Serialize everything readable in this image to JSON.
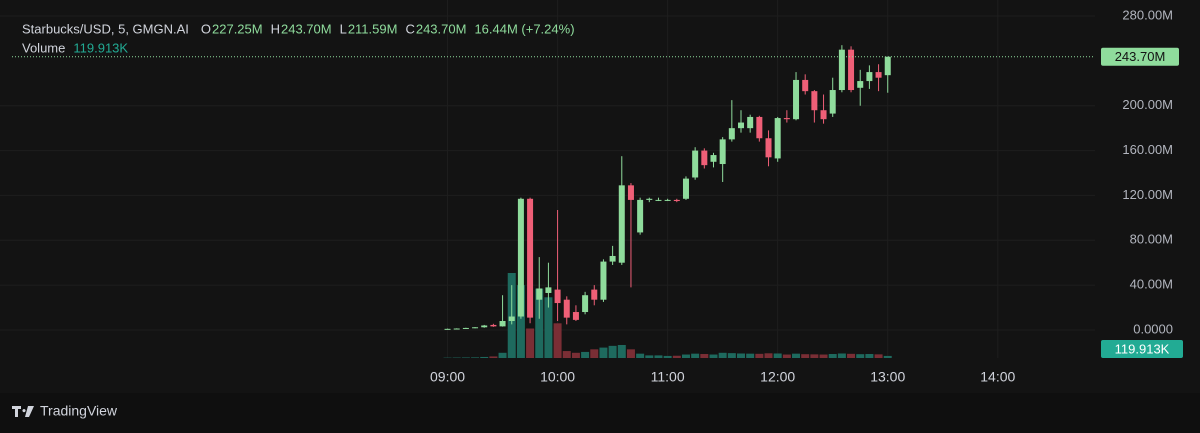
{
  "chart_data": {
    "type": "candlestick",
    "title": "Starbucks/USD, 5, GMGN.AI",
    "ohlc_header": [
      {
        "label": "O",
        "value": "227.25M"
      },
      {
        "label": "H",
        "value": "243.70M"
      },
      {
        "label": "L",
        "value": "211.59M"
      },
      {
        "label": "C",
        "value": "243.70M"
      }
    ],
    "change": "16.44M (+7.24%)",
    "volume_label": "Volume",
    "last_price": {
      "value": 243.7,
      "label": "243.70M"
    },
    "last_volume": {
      "value": 119913,
      "label": "119.913K"
    },
    "x": [
      "09:00",
      "09:05",
      "09:10",
      "09:15",
      "09:20",
      "09:25",
      "09:30",
      "09:35",
      "09:40",
      "09:45",
      "09:50",
      "09:55",
      "10:00",
      "10:05",
      "10:10",
      "10:15",
      "10:20",
      "10:25",
      "10:30",
      "10:35",
      "10:40",
      "10:45",
      "10:50",
      "10:55",
      "11:00",
      "11:05",
      "11:10",
      "11:15",
      "11:20",
      "11:25",
      "11:30",
      "11:35",
      "11:40",
      "11:45",
      "11:50",
      "11:55",
      "12:00",
      "12:05",
      "12:10",
      "12:15",
      "12:20",
      "12:25",
      "12:30",
      "12:35",
      "12:40",
      "12:45",
      "12:50",
      "12:55",
      "13:00"
    ],
    "open": [
      0.5,
      1.0,
      1.3,
      1.8,
      2.4,
      4.5,
      3.2,
      8,
      12,
      117,
      27,
      33,
      36,
      27,
      16,
      16,
      36,
      27,
      61,
      60,
      129,
      87,
      116,
      116,
      116,
      116,
      117,
      136,
      160,
      150,
      148,
      170,
      180,
      180,
      190,
      171,
      153,
      189,
      188,
      223,
      213,
      196,
      193,
      214,
      250,
      216,
      222,
      230,
      227.25
    ],
    "high": [
      1.2,
      1.5,
      2.0,
      2.6,
      4.5,
      5.5,
      31,
      40,
      118,
      118,
      65,
      60,
      107,
      30,
      22,
      34,
      40,
      63,
      75,
      155,
      131,
      118,
      118,
      118,
      117,
      117,
      137,
      163,
      162,
      158,
      172,
      205,
      196,
      192,
      191,
      178,
      190,
      196,
      230,
      228,
      214,
      210,
      225,
      254,
      253,
      232,
      236,
      237,
      243.7
    ],
    "low": [
      0.3,
      0.8,
      1.0,
      1.5,
      2.0,
      2.8,
      3.0,
      5,
      10,
      6,
      10,
      20,
      8,
      5,
      8,
      14,
      22,
      25,
      58,
      58,
      38,
      85,
      114,
      115,
      115,
      114,
      116,
      134,
      144,
      145,
      132,
      168,
      176,
      176,
      168,
      146,
      150,
      185,
      187,
      210,
      185,
      184,
      190,
      212,
      212,
      200,
      215,
      213,
      211.59
    ],
    "close": [
      1.0,
      1.3,
      1.8,
      2.4,
      4.0,
      3.2,
      8,
      12,
      117,
      11,
      37,
      38,
      24,
      11,
      9,
      31,
      27,
      61,
      66,
      129,
      116,
      116,
      117,
      116,
      116,
      115,
      135,
      160,
      147,
      156,
      170,
      180,
      185,
      190,
      171,
      154,
      189,
      188,
      223,
      213,
      196,
      188,
      214,
      250,
      214,
      222,
      230,
      225,
      243.7
    ],
    "volume": [
      20000,
      25000,
      30000,
      35000,
      60000,
      90000,
      300000,
      4900000,
      4200000,
      1700000,
      4000000,
      3500000,
      2000000,
      400000,
      300000,
      350000,
      500000,
      600000,
      700000,
      750000,
      500000,
      250000,
      150000,
      150000,
      120000,
      130000,
      200000,
      250000,
      230000,
      200000,
      300000,
      280000,
      260000,
      250000,
      240000,
      270000,
      260000,
      200000,
      250000,
      220000,
      210000,
      200000,
      230000,
      260000,
      240000,
      220000,
      230000,
      210000,
      119913
    ],
    "ylim": [
      -25,
      294.3
    ],
    "yticks": [
      {
        "value": 0,
        "label": "0.0000"
      },
      {
        "value": 40,
        "label": "40.00M"
      },
      {
        "value": 80,
        "label": "80.00M"
      },
      {
        "value": 120,
        "label": "120.00M"
      },
      {
        "value": 160,
        "label": "160.00M"
      },
      {
        "value": 200,
        "label": "200.00M"
      },
      {
        "value": 280,
        "label": "280.00M"
      }
    ],
    "xlim": [
      "04:56",
      "14:53"
    ],
    "xticks": [
      "09:00",
      "10:00",
      "11:00",
      "12:00",
      "13:00",
      "14:00"
    ],
    "grid": true,
    "up_color": "#8fdc9c",
    "down_color": "#ef5f77",
    "volume_up_color": "#1e6a5e",
    "volume_down_color": "#7a2e35",
    "volume_tag_color": "#22ab94",
    "brand": "TradingView"
  }
}
